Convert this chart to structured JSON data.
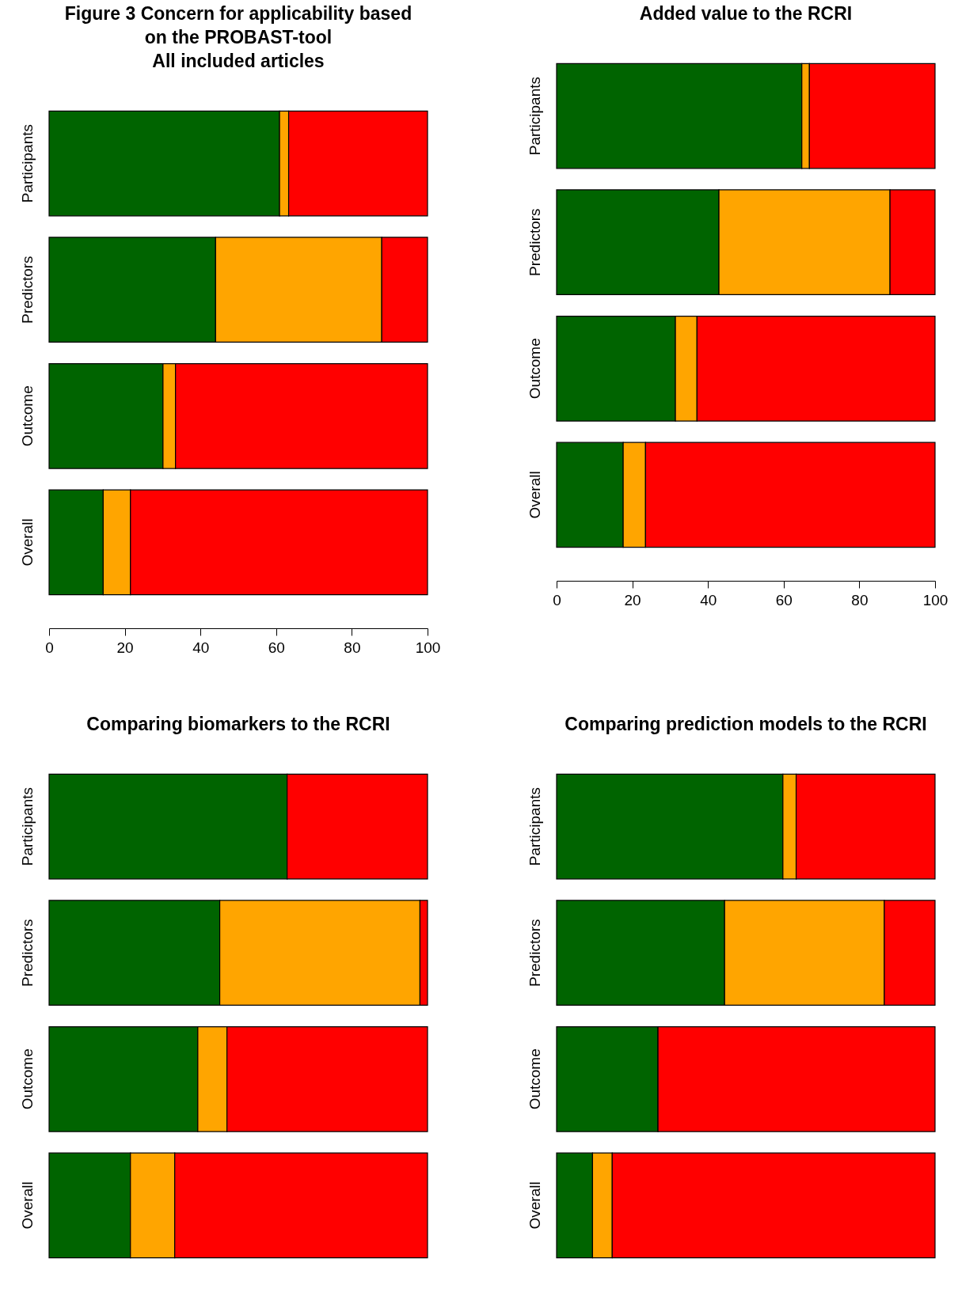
{
  "chart_data": [
    {
      "type": "bar",
      "orientation": "horizontal",
      "stacked": true,
      "title": "Figure 3 Concern for applicability based\non the PROBAST-tool\nAll included articles",
      "categories": [
        "Participants",
        "Predictors",
        "Outcome",
        "Overall"
      ],
      "xlim": [
        0,
        100
      ],
      "xticks": [
        0,
        20,
        40,
        60,
        80,
        100
      ],
      "series": [
        {
          "color": "#006400",
          "values": [
            60.9,
            44.0,
            30.1,
            14.3
          ]
        },
        {
          "color": "#ffa500",
          "values": [
            2.4,
            43.9,
            3.3,
            7.2
          ]
        },
        {
          "color": "#ff0000",
          "values": [
            36.7,
            12.1,
            66.6,
            78.5
          ]
        }
      ]
    },
    {
      "type": "bar",
      "orientation": "horizontal",
      "stacked": true,
      "title": "Added value to the RCRI",
      "categories": [
        "Participants",
        "Predictors",
        "Outcome",
        "Overall"
      ],
      "xlim": [
        0,
        100
      ],
      "xticks": [
        0,
        20,
        40,
        60,
        80,
        100
      ],
      "series": [
        {
          "color": "#006400",
          "values": [
            64.8,
            42.9,
            31.4,
            17.6
          ]
        },
        {
          "color": "#ffa500",
          "values": [
            2.0,
            45.2,
            5.7,
            5.9
          ]
        },
        {
          "color": "#ff0000",
          "values": [
            33.2,
            11.9,
            62.9,
            76.5
          ]
        }
      ]
    },
    {
      "type": "bar",
      "orientation": "horizontal",
      "stacked": true,
      "title": "Comparing biomarkers to the RCRI",
      "categories": [
        "Participants",
        "Predictors",
        "Outcome",
        "Overall"
      ],
      "xlim": [
        0,
        100
      ],
      "xticks": [
        0,
        20,
        40,
        60,
        80,
        100
      ],
      "tick_labels": "y",
      "series": [
        {
          "color": "#006400",
          "values": [
            62.9,
            45.1,
            39.3,
            21.5
          ]
        },
        {
          "color": "#ffa500",
          "values": [
            0,
            52.9,
            7.7,
            11.7
          ]
        },
        {
          "color": "#ff0000",
          "values": [
            37.1,
            2.0,
            53.0,
            66.8
          ]
        }
      ]
    },
    {
      "type": "bar",
      "orientation": "horizontal",
      "stacked": true,
      "title": "Comparing prediction models to the RCRI",
      "categories": [
        "Participants",
        "Predictors",
        "Outcome",
        "Overall"
      ],
      "xlim": [
        0,
        100
      ],
      "xticks": [
        0,
        20,
        40,
        60,
        80,
        100
      ],
      "tick_labels": "y",
      "series": [
        {
          "color": "#006400",
          "values": [
            59.8,
            44.4,
            26.8,
            9.5
          ]
        },
        {
          "color": "#ffa500",
          "values": [
            3.5,
            42.2,
            0,
            5.2
          ]
        },
        {
          "color": "#ff0000",
          "values": [
            36.7,
            13.4,
            73.2,
            85.3
          ]
        }
      ]
    }
  ]
}
